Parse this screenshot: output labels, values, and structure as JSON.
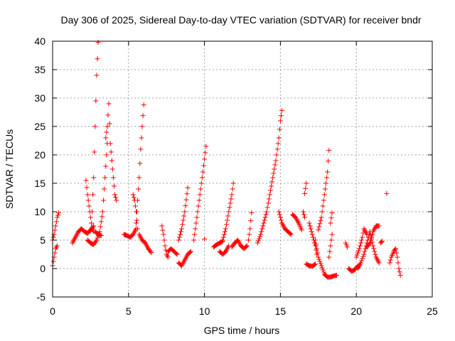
{
  "chart_data": {
    "type": "scatter",
    "title": "Day 306 of 2025, Sidereal Day-to-day VTEC variation (SDTVAR) for receiver bndr",
    "xlabel": "GPS time / hours",
    "ylabel": "SDTVAR / TECUs",
    "xlim": [
      0,
      25
    ],
    "ylim": [
      -5,
      40
    ],
    "xticks": [
      0,
      5,
      10,
      15,
      20,
      25
    ],
    "yticks": [
      -5,
      0,
      5,
      10,
      15,
      20,
      25,
      30,
      35,
      40
    ],
    "xtick_labels": [
      "0",
      "5",
      "10",
      "15",
      "20",
      "25"
    ],
    "ytick_labels": [
      "-5",
      "0",
      "5",
      "10",
      "15",
      "20",
      "25",
      "30",
      "35",
      "40"
    ],
    "grid": true,
    "marker": "plus",
    "color": "#ff0000",
    "series": [
      {
        "name": "bndr",
        "segments": [
          [
            [
              0.0,
              0.5
            ],
            [
              0.1,
              2
            ],
            [
              0.2,
              3.5
            ],
            [
              0.3,
              4
            ]
          ],
          [
            [
              0.0,
              5
            ],
            [
              0.1,
              6
            ],
            [
              0.2,
              7.5
            ],
            [
              0.3,
              9
            ],
            [
              0.4,
              9.8
            ]
          ],
          [
            [
              1.3,
              4.5
            ],
            [
              1.5,
              5.5
            ],
            [
              1.7,
              6.5
            ],
            [
              1.9,
              7
            ],
            [
              2.1,
              6.5
            ],
            [
              2.3,
              6.2
            ],
            [
              2.5,
              6.8
            ],
            [
              2.7,
              7.5
            ]
          ],
          [
            [
              2.2,
              15.5
            ],
            [
              2.3,
              13
            ],
            [
              2.4,
              11
            ],
            [
              2.5,
              9
            ],
            [
              2.6,
              7
            ],
            [
              2.7,
              6.5
            ]
          ],
          [
            [
              2.3,
              5
            ],
            [
              2.5,
              4.5
            ],
            [
              2.7,
              4.2
            ],
            [
              2.9,
              5
            ],
            [
              3.1,
              6.5
            ],
            [
              3.3,
              10
            ],
            [
              3.4,
              14
            ],
            [
              3.5,
              18
            ],
            [
              3.6,
              22
            ]
          ],
          [
            [
              2.6,
              10
            ],
            [
              2.7,
              16
            ],
            [
              2.8,
              25
            ],
            [
              2.9,
              34
            ],
            [
              3.0,
              39.8
            ]
          ],
          [
            [
              2.8,
              6.5
            ],
            [
              3.0,
              6
            ],
            [
              3.2,
              5.8
            ]
          ],
          [
            [
              3.5,
              23
            ],
            [
              3.6,
              25
            ],
            [
              3.7,
              29
            ],
            [
              3.8,
              22
            ],
            [
              3.9,
              19
            ],
            [
              4.0,
              16
            ],
            [
              4.1,
              13
            ],
            [
              4.2,
              12
            ]
          ],
          [
            [
              4.7,
              6
            ],
            [
              4.9,
              5.8
            ],
            [
              5.1,
              5.5
            ],
            [
              5.3,
              6
            ],
            [
              5.5,
              7
            ]
          ],
          [
            [
              5.3,
              13
            ],
            [
              5.4,
              12
            ],
            [
              5.5,
              10
            ],
            [
              5.6,
              7
            ]
          ],
          [
            [
              5.5,
              8
            ],
            [
              5.6,
              12
            ],
            [
              5.7,
              16
            ],
            [
              5.8,
              21
            ],
            [
              5.9,
              25
            ],
            [
              6.0,
              28.8
            ]
          ],
          [
            [
              5.7,
              6
            ],
            [
              5.9,
              5
            ],
            [
              6.1,
              4.5
            ],
            [
              6.3,
              3.5
            ],
            [
              6.5,
              2.8
            ]
          ],
          [
            [
              7.2,
              7.5
            ],
            [
              7.3,
              6
            ],
            [
              7.4,
              4
            ],
            [
              7.5,
              2.5
            ],
            [
              7.6,
              2
            ]
          ],
          [
            [
              7.6,
              3
            ],
            [
              7.8,
              3.5
            ],
            [
              8.0,
              3
            ],
            [
              8.2,
              2.5
            ]
          ],
          [
            [
              8.3,
              1
            ],
            [
              8.5,
              0.5
            ],
            [
              8.7,
              1.5
            ],
            [
              8.9,
              2.5
            ],
            [
              9.1,
              3
            ]
          ],
          [
            [
              8.3,
              5
            ],
            [
              8.5,
              7
            ],
            [
              8.7,
              10
            ],
            [
              8.9,
              14.2
            ]
          ],
          [
            [
              9.3,
              5
            ],
            [
              9.5,
              9
            ],
            [
              9.7,
              13
            ],
            [
              9.9,
              17
            ],
            [
              10.1,
              21.5
            ]
          ],
          [
            [
              10.0,
              5.2
            ]
          ],
          [
            [
              10.6,
              3.8
            ],
            [
              10.8,
              4.2
            ],
            [
              11.0,
              4.5
            ],
            [
              11.2,
              4.8
            ]
          ],
          [
            [
              11.0,
              3
            ],
            [
              11.2,
              2.5
            ],
            [
              11.4,
              3
            ],
            [
              11.6,
              4
            ]
          ],
          [
            [
              11.2,
              5
            ],
            [
              11.4,
              7
            ],
            [
              11.6,
              10
            ],
            [
              11.8,
              13
            ],
            [
              11.9,
              15
            ]
          ],
          [
            [
              11.8,
              3.8
            ],
            [
              12.0,
              4.5
            ],
            [
              12.2,
              5
            ],
            [
              12.4,
              4
            ],
            [
              12.6,
              3.5
            ],
            [
              12.8,
              4
            ]
          ],
          [
            [
              12.9,
              5
            ],
            [
              13.0,
              7
            ],
            [
              13.1,
              9.8
            ]
          ],
          [
            [
              13.5,
              4.5
            ],
            [
              13.7,
              6
            ],
            [
              13.9,
              8
            ],
            [
              14.1,
              10
            ],
            [
              14.3,
              13
            ],
            [
              14.5,
              16
            ],
            [
              14.7,
              19
            ],
            [
              14.9,
              23
            ],
            [
              15.0,
              26
            ],
            [
              15.1,
              27.8
            ]
          ],
          [
            [
              14.9,
              10
            ],
            [
              15.1,
              8
            ],
            [
              15.3,
              7
            ],
            [
              15.5,
              6.5
            ],
            [
              15.7,
              6
            ]
          ],
          [
            [
              15.8,
              9.5
            ],
            [
              16.0,
              9
            ],
            [
              16.2,
              8
            ],
            [
              16.4,
              6.8
            ]
          ],
          [
            [
              16.5,
              10
            ],
            [
              16.6,
              9
            ]
          ],
          [
            [
              16.6,
              13.2
            ],
            [
              16.7,
              15
            ]
          ],
          [
            [
              16.7,
              0.8
            ],
            [
              16.9,
              0.5
            ],
            [
              17.1,
              0.4
            ],
            [
              17.3,
              0.8
            ]
          ],
          [
            [
              16.9,
              8
            ],
            [
              17.1,
              6
            ],
            [
              17.3,
              4
            ],
            [
              17.4,
              2.5
            ]
          ],
          [
            [
              17.5,
              6.8
            ],
            [
              17.7,
              9
            ],
            [
              17.9,
              13
            ],
            [
              18.1,
              17
            ],
            [
              18.2,
              20.8
            ]
          ],
          [
            [
              17.3,
              5
            ],
            [
              17.5,
              2
            ],
            [
              17.7,
              0.5
            ],
            [
              17.9,
              -1
            ],
            [
              18.1,
              -1.5
            ],
            [
              18.3,
              -1.5
            ],
            [
              18.5,
              -1.3
            ],
            [
              18.7,
              -1.2
            ]
          ],
          [
            [
              18.2,
              2
            ],
            [
              18.3,
              4
            ],
            [
              18.4,
              6
            ]
          ],
          [
            [
              18.3,
              8
            ],
            [
              18.4,
              9.8
            ]
          ],
          [
            [
              19.3,
              4.5
            ],
            [
              19.4,
              3.8
            ]
          ],
          [
            [
              19.5,
              0
            ],
            [
              19.7,
              -0.5
            ],
            [
              19.9,
              -0.2
            ],
            [
              20.1,
              0.5
            ]
          ],
          [
            [
              20.0,
              2
            ],
            [
              20.2,
              3.5
            ],
            [
              20.4,
              5.5
            ],
            [
              20.5,
              7
            ],
            [
              20.7,
              6
            ]
          ],
          [
            [
              20.1,
              0
            ],
            [
              20.3,
              1
            ],
            [
              20.5,
              2.5
            ],
            [
              20.7,
              4.5
            ],
            [
              20.9,
              6.5
            ],
            [
              21.1,
              4
            ],
            [
              21.3,
              2
            ],
            [
              21.5,
              1
            ]
          ],
          [
            [
              20.7,
              3.8
            ],
            [
              20.9,
              4.5
            ],
            [
              21.1,
              6.5
            ],
            [
              21.3,
              7.5
            ],
            [
              21.5,
              7.5
            ]
          ],
          [
            [
              21.6,
              4.5
            ],
            [
              21.7,
              4.8
            ]
          ],
          [
            [
              22.0,
              13.2
            ]
          ],
          [
            [
              22.2,
              1
            ],
            [
              22.3,
              2
            ],
            [
              22.5,
              3.2
            ],
            [
              22.6,
              3.5
            ],
            [
              22.7,
              2
            ],
            [
              22.8,
              0
            ],
            [
              22.9,
              -1.2
            ]
          ]
        ]
      }
    ]
  }
}
